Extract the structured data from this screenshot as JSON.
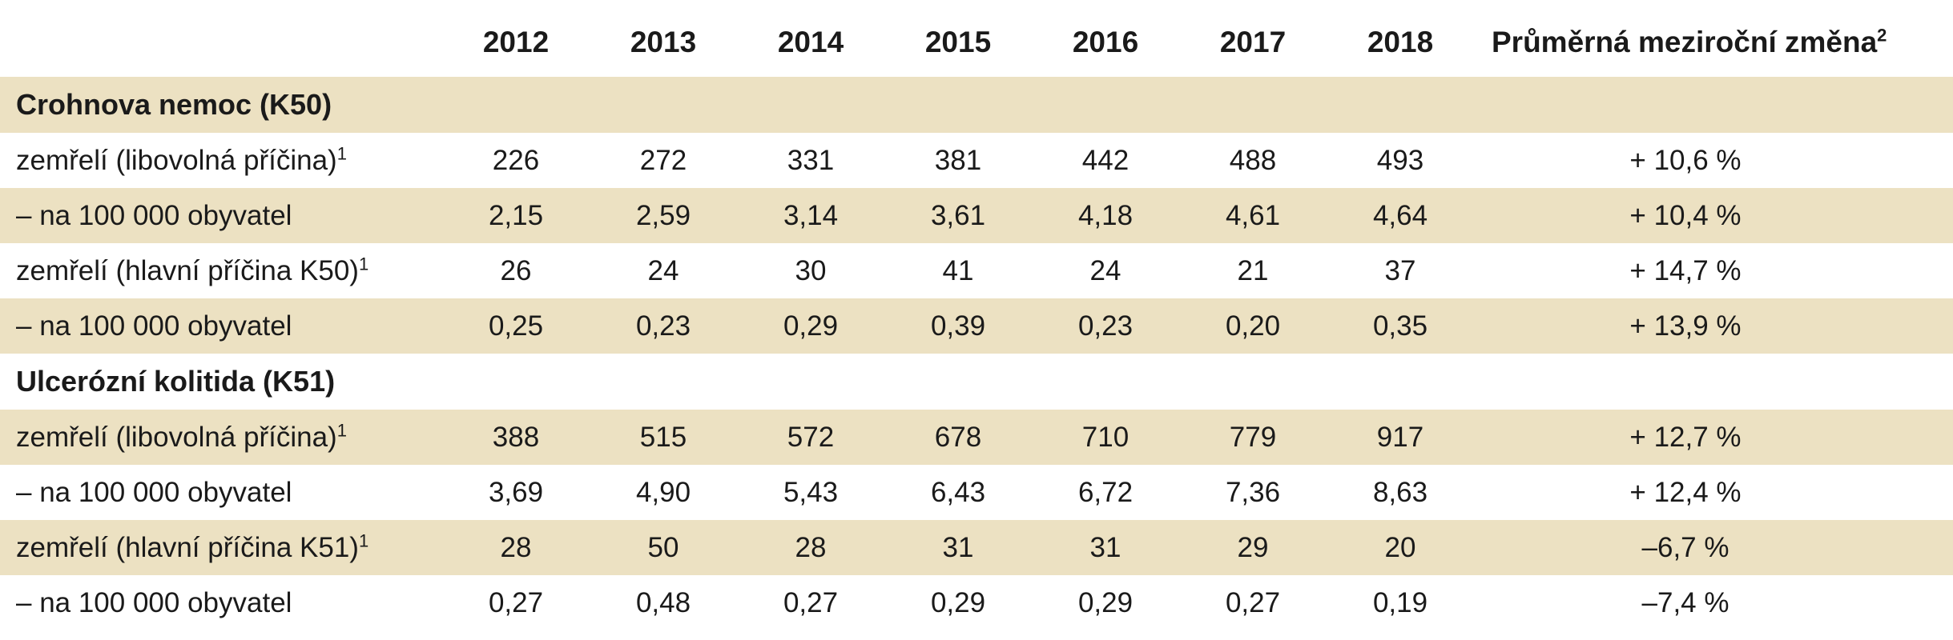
{
  "header": {
    "label": "",
    "years": [
      "2012",
      "2013",
      "2014",
      "2015",
      "2016",
      "2017",
      "2018"
    ],
    "avg_change": "Průměrná meziroční změna",
    "avg_change_note": "2"
  },
  "sections": [
    {
      "title": "Crohnova nemoc (K50)",
      "rows": [
        {
          "label": "zemřelí (libovolná příčina)",
          "note": "1",
          "values": [
            "226",
            "272",
            "331",
            "381",
            "442",
            "488",
            "493"
          ],
          "change": "+ 10,6 %"
        },
        {
          "label": "– na 100 000 obyvatel",
          "note": "",
          "values": [
            "2,15",
            "2,59",
            "3,14",
            "3,61",
            "4,18",
            "4,61",
            "4,64"
          ],
          "change": "+ 10,4 %"
        },
        {
          "label": "zemřelí (hlavní příčina K50)",
          "note": "1",
          "values": [
            "26",
            "24",
            "30",
            "41",
            "24",
            "21",
            "37"
          ],
          "change": "+ 14,7 %"
        },
        {
          "label": "– na 100 000 obyvatel",
          "note": "",
          "values": [
            "0,25",
            "0,23",
            "0,29",
            "0,39",
            "0,23",
            "0,20",
            "0,35"
          ],
          "change": "+ 13,9 %"
        }
      ]
    },
    {
      "title": "Ulcerózní kolitida (K51)",
      "rows": [
        {
          "label": "zemřelí (libovolná příčina)",
          "note": "1",
          "values": [
            "388",
            "515",
            "572",
            "678",
            "710",
            "779",
            "917"
          ],
          "change": "+ 12,7 %"
        },
        {
          "label": "– na 100 000 obyvatel",
          "note": "",
          "values": [
            "3,69",
            "4,90",
            "5,43",
            "6,43",
            "6,72",
            "7,36",
            "8,63"
          ],
          "change": "+ 12,4 %"
        },
        {
          "label": "zemřelí (hlavní příčina K51)",
          "note": "1",
          "values": [
            "28",
            "50",
            "28",
            "31",
            "31",
            "29",
            "20"
          ],
          "change": "–6,7 %"
        },
        {
          "label": "– na 100 000 obyvatel",
          "note": "",
          "values": [
            "0,27",
            "0,48",
            "0,27",
            "0,29",
            "0,29",
            "0,27",
            "0,19"
          ],
          "change": "–7,4 %"
        }
      ]
    }
  ],
  "colors": {
    "shade": "#ece1c2",
    "text": "#1a1a1a",
    "background": "#ffffff"
  }
}
